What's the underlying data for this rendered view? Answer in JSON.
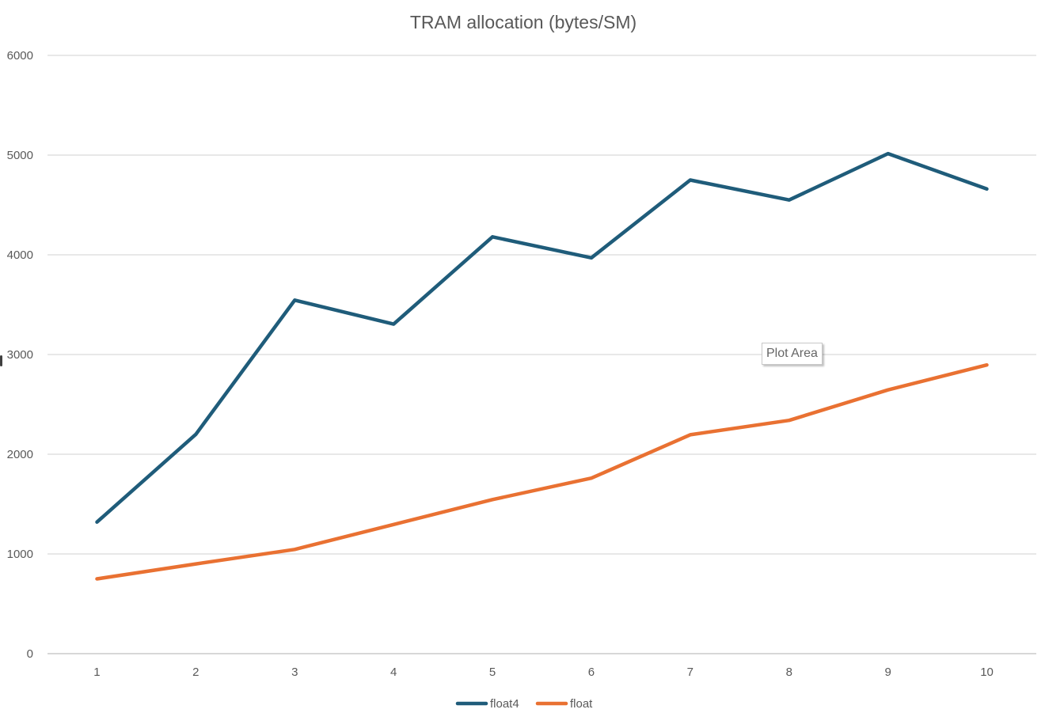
{
  "chart_data": {
    "type": "line",
    "title": "TRAM allocation (bytes/SM)",
    "categories": [
      "1",
      "2",
      "3",
      "4",
      "5",
      "6",
      "7",
      "8",
      "9",
      "10"
    ],
    "ylim": [
      0,
      6000
    ],
    "yticks": [
      "0",
      "1000",
      "2000",
      "3000",
      "4000",
      "5000",
      "6000"
    ],
    "grid": true,
    "legend_position": "bottom",
    "series": [
      {
        "name": "float4",
        "color": "#1f5c7a",
        "values": [
          1320,
          2200,
          3545,
          3305,
          4180,
          3970,
          4750,
          4550,
          5015,
          4660
        ]
      },
      {
        "name": "float",
        "color": "#e97132",
        "values": [
          750,
          900,
          1045,
          1295,
          1545,
          1760,
          2195,
          2340,
          2645,
          2895
        ]
      }
    ]
  },
  "tooltip": {
    "text": "Plot Area"
  }
}
